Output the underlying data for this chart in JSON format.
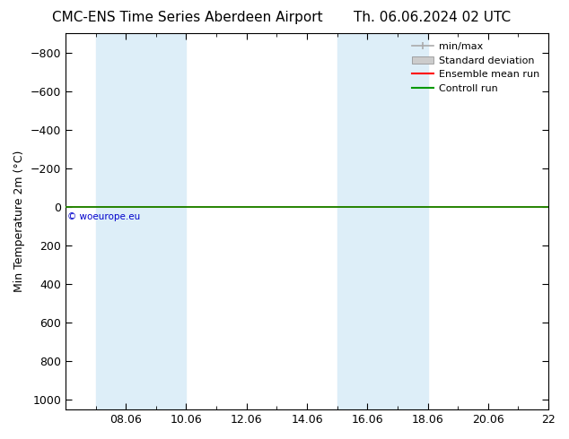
{
  "title_left": "CMC-ENS Time Series Aberdeen Airport",
  "title_right": "Th. 06.06.2024 02 UTC",
  "ylabel": "Min Temperature 2m (°C)",
  "ylim_top": -900,
  "ylim_bottom": 1050,
  "yticks": [
    -800,
    -600,
    -400,
    -200,
    0,
    200,
    400,
    600,
    800,
    1000
  ],
  "xlim_start": 0,
  "xlim_end": 16,
  "xtick_positions": [
    2,
    4,
    6,
    8,
    10,
    12,
    14,
    16
  ],
  "xtick_labels": [
    "08.06",
    "10.06",
    "12.06",
    "14.06",
    "16.06",
    "18.06",
    "20.06",
    "22"
  ],
  "shaded_bands": [
    [
      1.0,
      2.5
    ],
    [
      2.5,
      4.0
    ],
    [
      9.0,
      10.5
    ],
    [
      10.5,
      12.0
    ]
  ],
  "shade_color": "#ddeef8",
  "green_line_y": 0,
  "green_line_color": "#009900",
  "red_line_color": "#ff0000",
  "copyright_text": "© woeurope.eu",
  "copyright_color": "#0000cc",
  "background_color": "#ffffff",
  "plot_bg_color": "#ffffff",
  "legend_labels": [
    "min/max",
    "Standard deviation",
    "Ensemble mean run",
    "Controll run"
  ],
  "legend_colors": [
    "#aaaaaa",
    "#cccccc",
    "#ff0000",
    "#009900"
  ],
  "title_fontsize": 11,
  "tick_fontsize": 9,
  "ylabel_fontsize": 9,
  "legend_fontsize": 8
}
